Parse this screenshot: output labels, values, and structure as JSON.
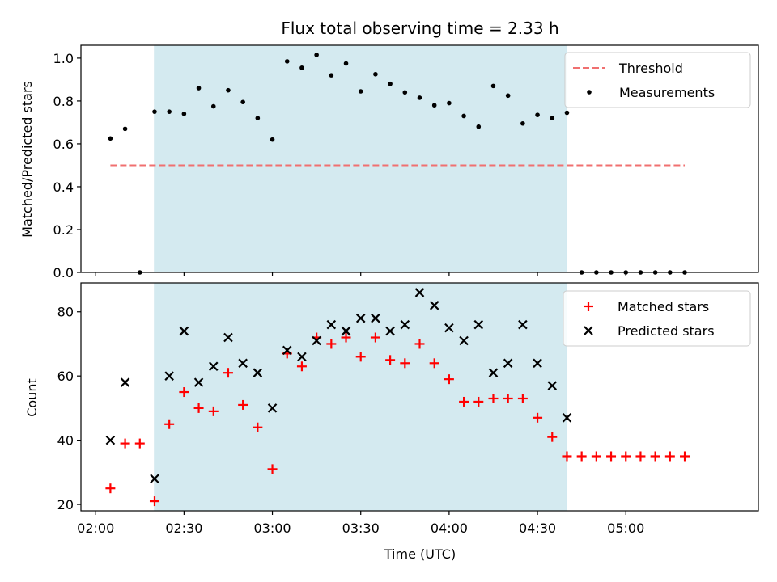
{
  "chart_data": [
    {
      "type": "scatter",
      "title": "Flux total observing time = 2.33 h",
      "xlabel": "",
      "ylabel": "Matched/Predicted stars",
      "ylim": [
        0,
        1.06
      ],
      "ytick_labels": [
        "0.0",
        "0.2",
        "0.4",
        "0.6",
        "0.8",
        "1.0"
      ],
      "ytick_values": [
        0,
        0.2,
        0.4,
        0.6,
        0.8,
        1.0
      ],
      "x_range": [
        "01:55",
        "05:45"
      ],
      "highlight_span": [
        "02:20",
        "04:40"
      ],
      "legend_position": "upper right",
      "threshold": {
        "name": "Threshold",
        "value": 0.5,
        "x_range": [
          "02:05",
          "05:20"
        ],
        "color": "#f07070"
      },
      "series": [
        {
          "name": "Measurements",
          "color": "#000000",
          "x": [
            "02:05",
            "02:10",
            "02:15",
            "02:20",
            "02:25",
            "02:30",
            "02:35",
            "02:40",
            "02:45",
            "02:50",
            "02:55",
            "03:00",
            "03:05",
            "03:10",
            "03:15",
            "03:20",
            "03:25",
            "03:30",
            "03:35",
            "03:40",
            "03:45",
            "03:50",
            "03:55",
            "04:00",
            "04:05",
            "04:10",
            "04:15",
            "04:20",
            "04:25",
            "04:30",
            "04:35",
            "04:40",
            "04:45",
            "04:50",
            "04:55",
            "05:00",
            "05:05",
            "05:10",
            "05:15",
            "05:20"
          ],
          "y": [
            0.625,
            0.67,
            0.0,
            0.75,
            0.75,
            0.74,
            0.86,
            0.775,
            0.85,
            0.795,
            0.72,
            0.62,
            0.985,
            0.955,
            1.015,
            0.92,
            0.975,
            0.845,
            0.925,
            0.88,
            0.84,
            0.815,
            0.78,
            0.79,
            0.73,
            0.68,
            0.87,
            0.825,
            0.695,
            0.735,
            0.72,
            0.745,
            0.0,
            0.0,
            0.0,
            0.0,
            0.0,
            0.0,
            0.0,
            0.0
          ]
        }
      ]
    },
    {
      "type": "scatter",
      "title": "",
      "xlabel": "Time (UTC)",
      "ylabel": "Count",
      "ylim": [
        18,
        89
      ],
      "ytick_labels": [
        "20",
        "40",
        "60",
        "80"
      ],
      "ytick_values": [
        20,
        40,
        60,
        80
      ],
      "xtick_labels": [
        "02:00",
        "02:30",
        "03:00",
        "03:30",
        "04:00",
        "04:30",
        "05:00"
      ],
      "xtick_values": [
        "02:00",
        "02:30",
        "03:00",
        "03:30",
        "04:00",
        "04:30",
        "05:00"
      ],
      "x_range": [
        "01:55",
        "05:45"
      ],
      "highlight_span": [
        "02:20",
        "04:40"
      ],
      "legend_position": "upper right",
      "series": [
        {
          "name": "Matched stars",
          "marker": "plus",
          "color": "#ff0000",
          "x": [
            "02:05",
            "02:10",
            "02:15",
            "02:20",
            "02:25",
            "02:30",
            "02:35",
            "02:40",
            "02:45",
            "02:50",
            "02:55",
            "03:00",
            "03:05",
            "03:10",
            "03:15",
            "03:20",
            "03:25",
            "03:30",
            "03:35",
            "03:40",
            "03:45",
            "03:50",
            "03:55",
            "04:00",
            "04:05",
            "04:10",
            "04:15",
            "04:20",
            "04:25",
            "04:30",
            "04:35",
            "04:40",
            "04:45",
            "04:50",
            "04:55",
            "05:00",
            "05:05",
            "05:10",
            "05:15",
            "05:20"
          ],
          "y": [
            25,
            39,
            39,
            21,
            45,
            55,
            50,
            49,
            61,
            51,
            44,
            31,
            67,
            63,
            72,
            70,
            72,
            66,
            72,
            65,
            64,
            70,
            64,
            59,
            52,
            52,
            53,
            53,
            53,
            47,
            41,
            35,
            35,
            35,
            35,
            35,
            35,
            35,
            35,
            35
          ]
        },
        {
          "name": "Predicted stars",
          "marker": "x",
          "color": "#000000",
          "x": [
            "02:05",
            "02:10",
            "02:20",
            "02:25",
            "02:30",
            "02:35",
            "02:40",
            "02:45",
            "02:50",
            "02:55",
            "03:00",
            "03:05",
            "03:10",
            "03:15",
            "03:20",
            "03:25",
            "03:30",
            "03:35",
            "03:40",
            "03:45",
            "03:50",
            "03:55",
            "04:00",
            "04:05",
            "04:10",
            "04:15",
            "04:20",
            "04:25",
            "04:30",
            "04:35",
            "04:40"
          ],
          "y": [
            40,
            58,
            28,
            60,
            74,
            58,
            63,
            72,
            64,
            61,
            50,
            68,
            66,
            71,
            76,
            74,
            78,
            78,
            74,
            76,
            86,
            82,
            75,
            71,
            76,
            61,
            64,
            76,
            64,
            57,
            47
          ]
        }
      ]
    }
  ],
  "style": {
    "highlight_color": "#d4eaf0",
    "highlight_edge": "#bcdce5"
  }
}
